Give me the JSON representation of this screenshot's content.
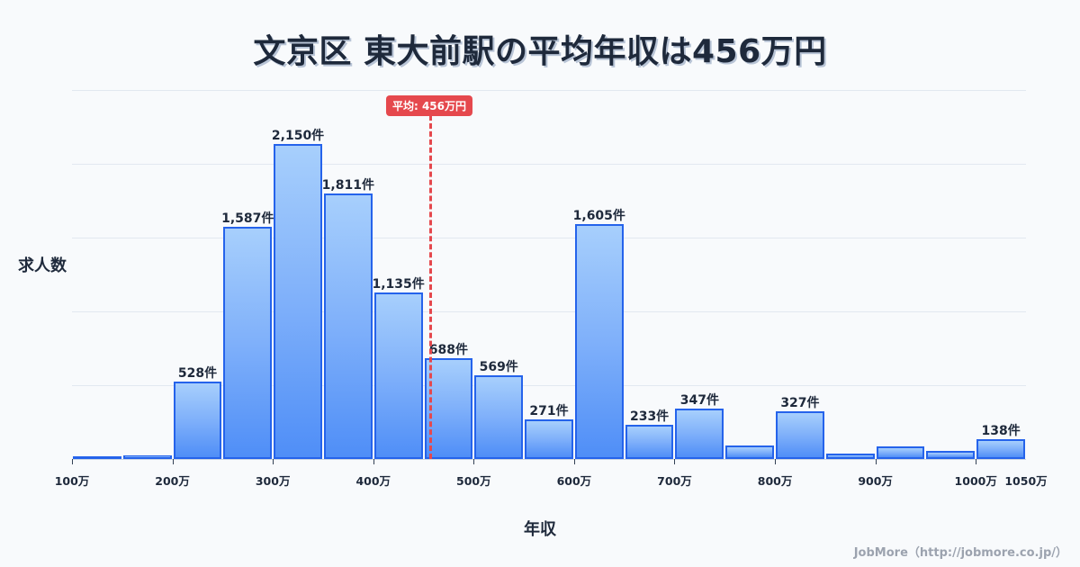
{
  "title": "文京区 東大前駅の平均年収は456万円",
  "mean_badge": "平均: 456万円",
  "y_axis_label": "求人数",
  "x_axis_label": "年収",
  "watermark": "JobMore（http://jobmore.co.jp/）",
  "colors": {
    "bar_top": "#a7cffc",
    "bar_bottom": "#4f8ef7",
    "bar_border": "#2563eb",
    "mean_line": "#e5484d",
    "text": "#1e293b",
    "background": "#f8fafc"
  },
  "chart_data": {
    "type": "bar",
    "title": "文京区 東大前駅の平均年収は456万円",
    "xlabel": "年収",
    "ylabel": "求人数",
    "bin_width_man_yen": 50,
    "categories": [
      "100-150万",
      "150-200万",
      "200-250万",
      "250-300万",
      "300-350万",
      "350-400万",
      "400-450万",
      "450-500万",
      "500-550万",
      "550-600万",
      "600-650万",
      "650-700万",
      "700-750万",
      "750-800万",
      "800-850万",
      "850-900万",
      "900-950万",
      "950-1000万",
      "1000-1050万"
    ],
    "bin_starts": [
      100,
      150,
      200,
      250,
      300,
      350,
      400,
      450,
      500,
      550,
      600,
      650,
      700,
      750,
      800,
      850,
      900,
      950,
      1000
    ],
    "values": [
      8,
      25,
      528,
      1587,
      2150,
      1811,
      1135,
      688,
      569,
      271,
      1605,
      233,
      347,
      92,
      327,
      37,
      86,
      55,
      138
    ],
    "labels": [
      "",
      "",
      "528件",
      "1,587件",
      "2,150件",
      "1,811件",
      "1,135件",
      "688件",
      "569件",
      "271件",
      "1,605件",
      "233件",
      "347件",
      "",
      "327件",
      "",
      "",
      "",
      "138件"
    ],
    "x_ticks": [
      {
        "value": 100,
        "label": "100万"
      },
      {
        "value": 200,
        "label": "200万"
      },
      {
        "value": 300,
        "label": "300万"
      },
      {
        "value": 400,
        "label": "400万"
      },
      {
        "value": 500,
        "label": "500万"
      },
      {
        "value": 600,
        "label": "600万"
      },
      {
        "value": 700,
        "label": "700万"
      },
      {
        "value": 800,
        "label": "800万"
      },
      {
        "value": 900,
        "label": "900万"
      },
      {
        "value": 1000,
        "label": "1000万"
      },
      {
        "value": 1050,
        "label": "1050万"
      }
    ],
    "xlim": [
      100,
      1050
    ],
    "ylim": [
      0,
      2520
    ],
    "grid": true,
    "mean": {
      "value": 456,
      "label": "平均: 456万円"
    }
  }
}
